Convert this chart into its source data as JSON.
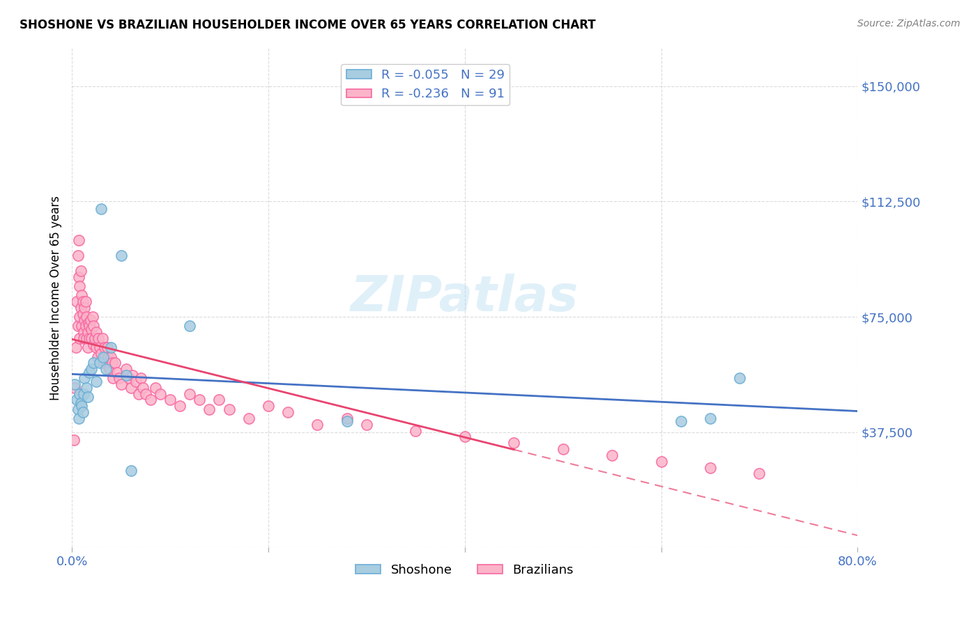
{
  "title": "SHOSHONE VS BRAZILIAN HOUSEHOLDER INCOME OVER 65 YEARS CORRELATION CHART",
  "source": "Source: ZipAtlas.com",
  "xlabel_color": "#4da6ff",
  "ylabel": "Householder Income Over 65 years",
  "xlim": [
    0.0,
    0.8
  ],
  "ylim": [
    0,
    162500
  ],
  "yticks": [
    0,
    37500,
    75000,
    112500,
    150000
  ],
  "ytick_labels": [
    "",
    "$37,500",
    "$75,000",
    "$112,500",
    "$150,000"
  ],
  "xtick_labels": [
    "0.0%",
    "80.0%"
  ],
  "R_shoshone": -0.055,
  "N_shoshone": 29,
  "R_brazilian": -0.236,
  "N_brazilian": 91,
  "shoshone_color": "#6baed6",
  "shoshone_fill": "#a8cce0",
  "brazilian_color": "#f768a1",
  "brazilian_fill": "#fbb4c9",
  "trend_shoshone_color": "#4472c4",
  "trend_brazilian_color": "#e8436e",
  "watermark": "ZIPatlas",
  "shoshone_x": [
    0.003,
    0.005,
    0.006,
    0.007,
    0.008,
    0.009,
    0.01,
    0.011,
    0.012,
    0.013,
    0.015,
    0.016,
    0.018,
    0.02,
    0.022,
    0.025,
    0.028,
    0.03,
    0.032,
    0.035,
    0.04,
    0.05,
    0.055,
    0.06,
    0.12,
    0.28,
    0.62,
    0.65,
    0.68
  ],
  "shoshone_y": [
    53000,
    48000,
    45000,
    42000,
    50000,
    47000,
    46000,
    44000,
    50000,
    55000,
    52000,
    49000,
    57000,
    58000,
    60000,
    54000,
    60000,
    110000,
    62000,
    58000,
    65000,
    95000,
    56000,
    25000,
    72000,
    41000,
    41000,
    42000,
    55000
  ],
  "brazilian_x": [
    0.002,
    0.003,
    0.004,
    0.005,
    0.006,
    0.006,
    0.007,
    0.007,
    0.008,
    0.008,
    0.008,
    0.009,
    0.009,
    0.01,
    0.01,
    0.011,
    0.011,
    0.012,
    0.012,
    0.013,
    0.013,
    0.014,
    0.014,
    0.015,
    0.015,
    0.016,
    0.016,
    0.017,
    0.018,
    0.018,
    0.019,
    0.02,
    0.02,
    0.021,
    0.022,
    0.022,
    0.023,
    0.025,
    0.025,
    0.026,
    0.027,
    0.028,
    0.03,
    0.031,
    0.032,
    0.033,
    0.034,
    0.035,
    0.036,
    0.037,
    0.038,
    0.04,
    0.041,
    0.042,
    0.044,
    0.046,
    0.048,
    0.05,
    0.055,
    0.058,
    0.06,
    0.062,
    0.065,
    0.068,
    0.07,
    0.072,
    0.075,
    0.08,
    0.085,
    0.09,
    0.1,
    0.11,
    0.12,
    0.13,
    0.14,
    0.15,
    0.16,
    0.18,
    0.2,
    0.22,
    0.25,
    0.28,
    0.3,
    0.35,
    0.4,
    0.45,
    0.5,
    0.55,
    0.6,
    0.65,
    0.7
  ],
  "brazilian_y": [
    35000,
    52000,
    65000,
    80000,
    95000,
    72000,
    88000,
    100000,
    68000,
    75000,
    85000,
    78000,
    90000,
    72000,
    82000,
    76000,
    80000,
    70000,
    68000,
    74000,
    78000,
    72000,
    80000,
    68000,
    75000,
    70000,
    65000,
    73000,
    68000,
    72000,
    74000,
    71000,
    68000,
    75000,
    66000,
    72000,
    68000,
    70000,
    65000,
    62000,
    68000,
    65000,
    63000,
    68000,
    60000,
    65000,
    62000,
    60000,
    65000,
    62000,
    58000,
    62000,
    60000,
    55000,
    60000,
    57000,
    55000,
    53000,
    58000,
    55000,
    52000,
    56000,
    54000,
    50000,
    55000,
    52000,
    50000,
    48000,
    52000,
    50000,
    48000,
    46000,
    50000,
    48000,
    45000,
    48000,
    45000,
    42000,
    46000,
    44000,
    40000,
    42000,
    40000,
    38000,
    36000,
    34000,
    32000,
    30000,
    28000,
    26000,
    24000
  ]
}
